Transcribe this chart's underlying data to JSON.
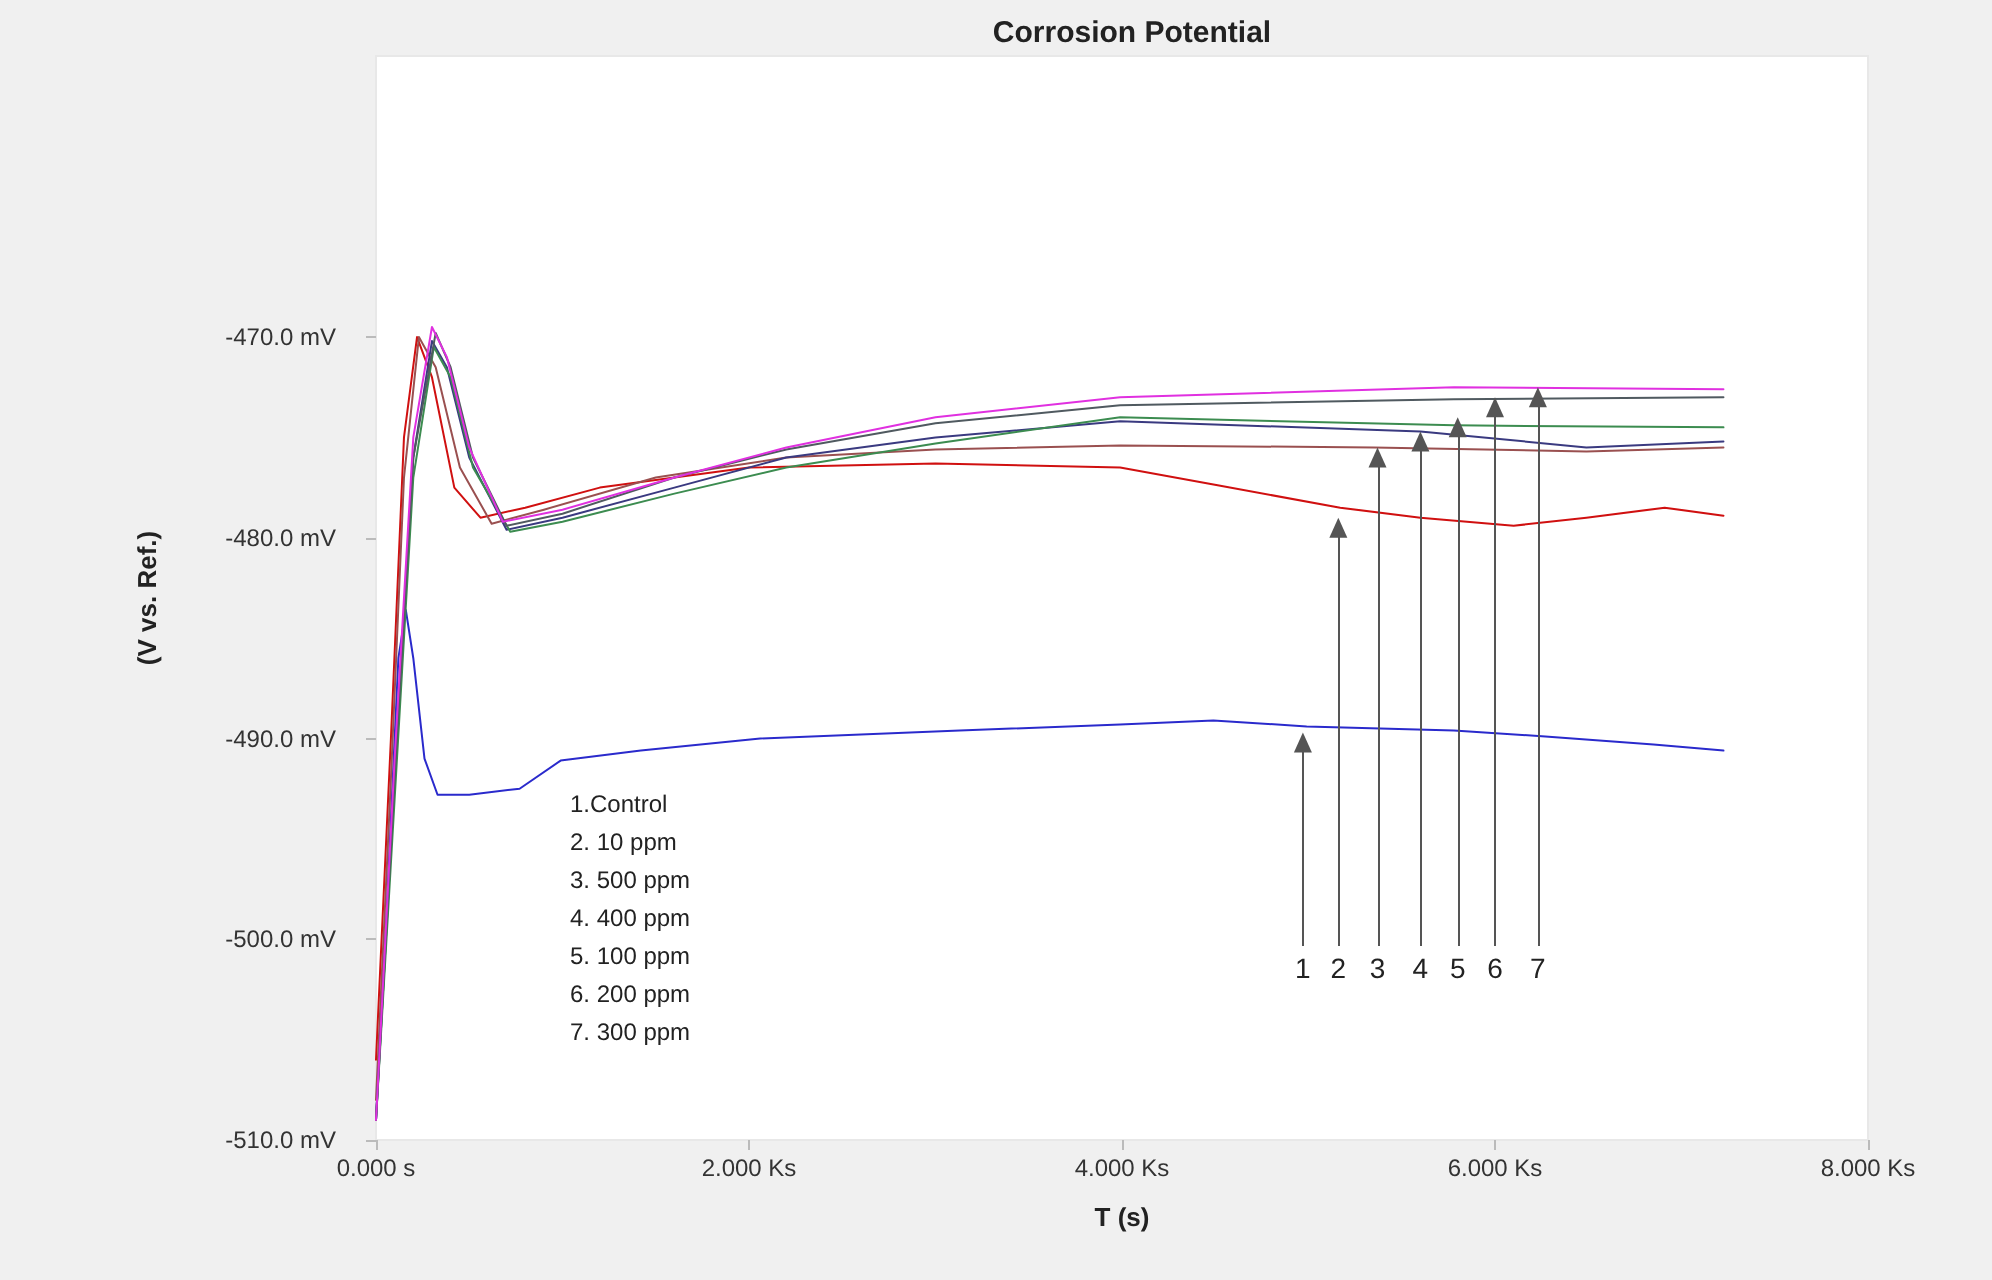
{
  "chart_data": {
    "type": "line",
    "title": "Corrosion Potential",
    "xlabel": "T (s)",
    "ylabel": "(V vs. Ref.)",
    "xlim": [
      0,
      8
    ],
    "xticks": [
      {
        "value": 0,
        "label": "0.000 s"
      },
      {
        "value": 2,
        "label": "2.000 Ks"
      },
      {
        "value": 4,
        "label": "4.000 Ks"
      },
      {
        "value": 6,
        "label": "6.000 Ks"
      },
      {
        "value": 8,
        "label": "8.000 Ks"
      }
    ],
    "ylim": [
      -510,
      -456
    ],
    "yticks": [
      {
        "value": -510,
        "label": "-510.0 mV"
      },
      {
        "value": -500,
        "label": "-500.0 mV"
      },
      {
        "value": -490,
        "label": "-490.0 mV"
      },
      {
        "value": -480,
        "label": "-480.0 mV"
      },
      {
        "value": -470,
        "label": "-470.0 mV"
      }
    ],
    "grid": false,
    "marker": "none",
    "line_style": "solid",
    "series": [
      {
        "color": "#2a2acc",
        "x": [
          0,
          0.06,
          0.12,
          0.16,
          0.2,
          0.26,
          0.33,
          0.5,
          0.77,
          0.99,
          1.42,
          2.06,
          3.13,
          3.99,
          4.49,
          4.99,
          5.78,
          6.27,
          6.85,
          7.225
        ],
        "values": [
          -509,
          -498,
          -486,
          -483.6,
          -486,
          -491,
          -492.8,
          -492.8,
          -492.5,
          -491.1,
          -490.6,
          -490,
          -489.6,
          -489.3,
          -489.1,
          -489.4,
          -489.6,
          -489.9,
          -490.3,
          -490.6
        ]
      },
      {
        "color": "#d01010",
        "x": [
          0,
          0.08,
          0.15,
          0.22,
          0.3,
          0.42,
          0.56,
          0.8,
          1.2,
          2,
          3,
          3.99,
          4.52,
          5.17,
          5.6,
          6.1,
          6.49,
          6.91,
          7.225
        ],
        "values": [
          -506,
          -490,
          -475,
          -470,
          -472,
          -477.5,
          -479,
          -478.5,
          -477.5,
          -476.5,
          -476.3,
          -476.5,
          -477.4,
          -478.5,
          -479,
          -479.4,
          -479,
          -478.5,
          -478.9
        ]
      },
      {
        "color": "#9a5050",
        "x": [
          0,
          0.08,
          0.15,
          0.23,
          0.32,
          0.45,
          0.62,
          0.9,
          1.5,
          2.2,
          3,
          3.99,
          5.35,
          6.49,
          7.225
        ],
        "values": [
          -508,
          -492,
          -477,
          -470,
          -471.5,
          -476.5,
          -479.3,
          -478.6,
          -477,
          -476,
          -475.6,
          -475.4,
          -475.5,
          -475.7,
          -475.5
        ]
      },
      {
        "color": "#3a3a80",
        "x": [
          0,
          0.1,
          0.2,
          0.3,
          0.38,
          0.5,
          0.7,
          1,
          1.6,
          2.2,
          3,
          3.99,
          5.6,
          6.49,
          7.225
        ],
        "values": [
          -509,
          -492,
          -476,
          -470.2,
          -471.5,
          -476,
          -479.6,
          -479,
          -477.5,
          -476,
          -475,
          -474.2,
          -474.7,
          -475.5,
          -475.2
        ]
      },
      {
        "color": "#3c8c50",
        "x": [
          0,
          0.1,
          0.2,
          0.31,
          0.4,
          0.52,
          0.72,
          1,
          1.6,
          2.2,
          3,
          3.99,
          5.78,
          7.225
        ],
        "values": [
          -509,
          -493,
          -477,
          -470.5,
          -472,
          -476.5,
          -479.7,
          -479.2,
          -477.8,
          -476.5,
          -475.3,
          -474,
          -474.4,
          -474.5
        ]
      },
      {
        "color": "#505a60",
        "x": [
          0,
          0.1,
          0.2,
          0.32,
          0.4,
          0.52,
          0.7,
          1,
          1.6,
          2.2,
          3,
          3.99,
          5.78,
          7.225
        ],
        "values": [
          -509,
          -492,
          -476,
          -469.8,
          -471.5,
          -476,
          -479.4,
          -478.8,
          -477,
          -475.6,
          -474.3,
          -473.4,
          -473.1,
          -473
        ]
      },
      {
        "color": "#e030e0",
        "x": [
          0,
          0.1,
          0.2,
          0.3,
          0.38,
          0.5,
          0.68,
          1,
          1.6,
          2.2,
          3,
          3.99,
          5.78,
          7.225
        ],
        "values": [
          -509,
          -491,
          -475,
          -469.5,
          -471,
          -475.5,
          -479.2,
          -478.6,
          -477,
          -475.5,
          -474,
          -473,
          -472.5,
          -472.6
        ]
      }
    ],
    "annotations": [
      {
        "text": "1",
        "x": 4.97,
        "y": -490.2
      },
      {
        "text": "2",
        "x": 5.16,
        "y": -479.5
      },
      {
        "text": "3",
        "x": 5.37,
        "y": -476.0
      },
      {
        "text": "4",
        "x": 5.6,
        "y": -475.2
      },
      {
        "text": "5",
        "x": 5.8,
        "y": -474.5
      },
      {
        "text": "6",
        "x": 6.0,
        "y": -473.5
      },
      {
        "text": "7",
        "x": 6.23,
        "y": -473.0
      },
      "1.Control",
      "2. 10 ppm",
      "3. 500 ppm",
      "4. 400 ppm",
      "5. 100 ppm",
      "6. 200 ppm",
      "7. 300 ppm"
    ]
  }
}
